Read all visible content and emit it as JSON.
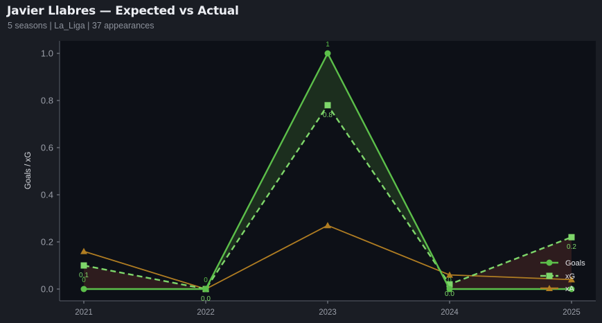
{
  "header": {
    "title": "Javier Llabres — Expected vs Actual",
    "subtitle": "5 seasons | La_Liga | 37 appearances"
  },
  "colors": {
    "background": "#1a1d24",
    "plot_bg": "#0d1017",
    "goals": "#5cbf4a",
    "xg": "#7ed66a",
    "xa": "#b07d22",
    "overperf_fill": "#1c2e1e",
    "underperf_fill": "#2e1c1e"
  },
  "chart_data": {
    "type": "line",
    "title": "Javier Llabres — Expected vs Actual",
    "subtitle": "5 seasons | La_Liga | 37 appearances",
    "xlabel": "",
    "ylabel": "Goals / xG",
    "categories": [
      "2021",
      "2022",
      "2023",
      "2024",
      "2025"
    ],
    "ylim": [
      -0.05,
      1.05
    ],
    "yticks": [
      "0.0",
      "0.2",
      "0.4",
      "0.6",
      "0.8",
      "1.0"
    ],
    "grid": false,
    "legend_position": "lower right",
    "series": [
      {
        "name": "Goals",
        "values": [
          0,
          0,
          1,
          0,
          0
        ],
        "marker": "circle",
        "style": "solid"
      },
      {
        "name": "xG",
        "values": [
          0.1,
          0.0,
          0.78,
          0.02,
          0.22
        ],
        "marker": "square",
        "style": "dashed"
      },
      {
        "name": "xA",
        "values": [
          0.16,
          0.0,
          0.27,
          0.06,
          0.04
        ],
        "marker": "triangle",
        "style": "solid"
      }
    ],
    "annotations": {
      "goals": [
        "0",
        "0",
        "1",
        "0",
        ""
      ],
      "xg": [
        "0.1",
        "0.0",
        "0.8",
        "0.0",
        "0.2"
      ]
    }
  },
  "legend": {
    "items": [
      "Goals",
      "xG",
      "xA"
    ]
  }
}
